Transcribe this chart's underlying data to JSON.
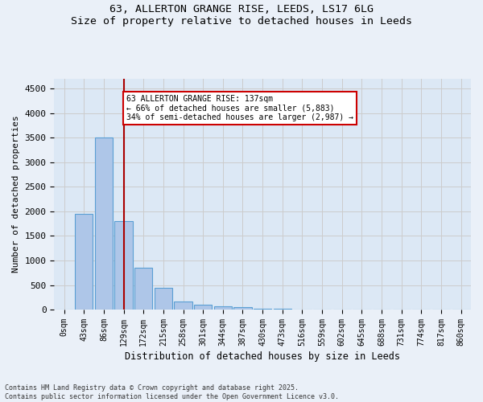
{
  "title_line1": "63, ALLERTON GRANGE RISE, LEEDS, LS17 6LG",
  "title_line2": "Size of property relative to detached houses in Leeds",
  "xlabel": "Distribution of detached houses by size in Leeds",
  "ylabel": "Number of detached properties",
  "bin_labels": [
    "0sqm",
    "43sqm",
    "86sqm",
    "129sqm",
    "172sqm",
    "215sqm",
    "258sqm",
    "301sqm",
    "344sqm",
    "387sqm",
    "430sqm",
    "473sqm",
    "516sqm",
    "559sqm",
    "602sqm",
    "645sqm",
    "688sqm",
    "731sqm",
    "774sqm",
    "817sqm",
    "860sqm"
  ],
  "bar_values": [
    5,
    1950,
    3500,
    1800,
    850,
    450,
    170,
    100,
    65,
    45,
    20,
    10,
    5,
    3,
    2,
    1,
    1,
    0,
    0,
    0,
    0
  ],
  "bar_color": "#aec6e8",
  "bar_edge_color": "#5a9fd4",
  "bar_edge_width": 0.8,
  "vline_x": 3,
  "vline_color": "#aa0000",
  "annotation_text": "63 ALLERTON GRANGE RISE: 137sqm\n← 66% of detached houses are smaller (5,883)\n34% of semi-detached houses are larger (2,987) →",
  "annotation_box_color": "#ffffff",
  "annotation_box_edge": "#cc0000",
  "ylim": [
    0,
    4700
  ],
  "yticks": [
    0,
    500,
    1000,
    1500,
    2000,
    2500,
    3000,
    3500,
    4000,
    4500
  ],
  "grid_color": "#cccccc",
  "bg_color": "#dce8f5",
  "fig_bg_color": "#eaf0f8",
  "footer_line1": "Contains HM Land Registry data © Crown copyright and database right 2025.",
  "footer_line2": "Contains public sector information licensed under the Open Government Licence v3.0."
}
